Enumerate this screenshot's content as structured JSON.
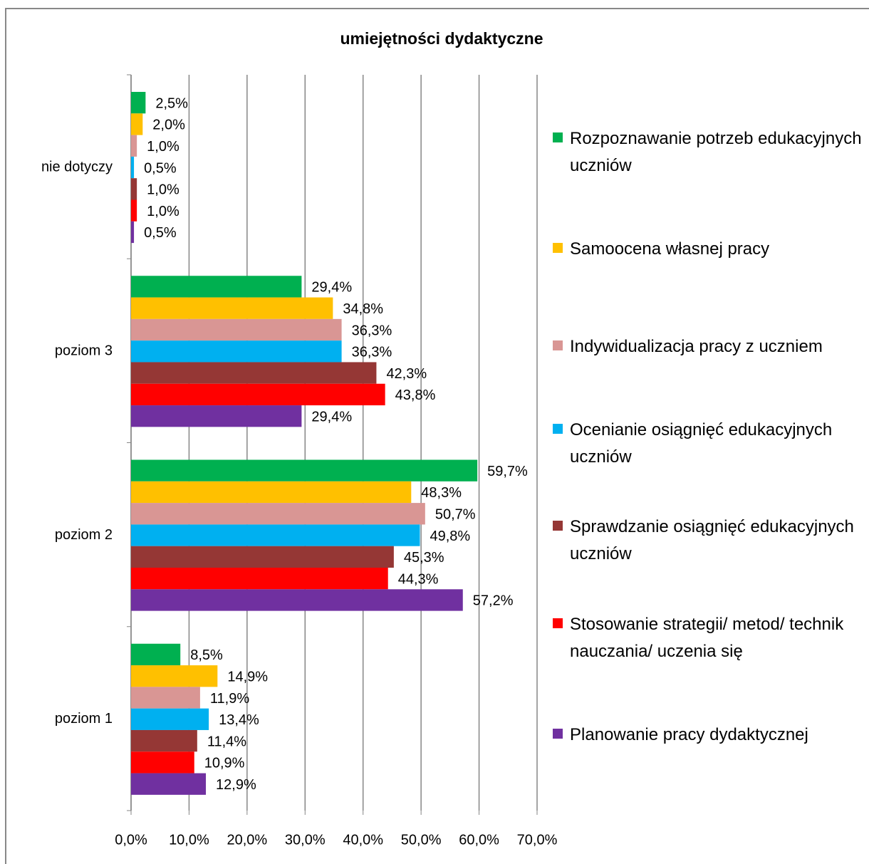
{
  "chart_data": {
    "type": "bar",
    "orientation": "horizontal",
    "title": "umiejętności dydaktyczne",
    "categories": [
      "nie dotyczy",
      "poziom 3",
      "poziom 2",
      "poziom 1"
    ],
    "series": [
      {
        "name": "Rozpoznawanie potrzeb edukacyjnych uczniów",
        "color": "#00b050",
        "values": [
          2.5,
          29.4,
          59.7,
          8.5
        ],
        "value_labels": [
          "2,5%",
          "29,4%",
          "59,7%",
          "8,5%"
        ]
      },
      {
        "name": "Samoocena własnej pracy",
        "color": "#ffc000",
        "values": [
          2.0,
          34.8,
          48.3,
          14.9
        ],
        "value_labels": [
          "2,0%",
          "34,8%",
          "48,3%",
          "14,9%"
        ]
      },
      {
        "name": "Indywidualizacja pracy z uczniem",
        "color": "#d99694",
        "values": [
          1.0,
          36.3,
          50.7,
          11.9
        ],
        "value_labels": [
          "1,0%",
          "36,3%",
          "50,7%",
          "11,9%"
        ]
      },
      {
        "name": "Ocenianie osiągnięć edukacyjnych uczniów",
        "color": "#00b0f0",
        "values": [
          0.5,
          36.3,
          49.8,
          13.4
        ],
        "value_labels": [
          "0,5%",
          "36,3%",
          "49,8%",
          "13,4%"
        ]
      },
      {
        "name": "Sprawdzanie osiągnięć edukacyjnych uczniów",
        "color": "#953735",
        "values": [
          1.0,
          42.3,
          45.3,
          11.4
        ],
        "value_labels": [
          "1,0%",
          "42,3%",
          "45,3%",
          "11,4%"
        ]
      },
      {
        "name": "Stosowanie strategii/ metod/ technik nauczania/ uczenia się",
        "color": "#ff0000",
        "values": [
          1.0,
          43.8,
          44.3,
          10.9
        ],
        "value_labels": [
          "1,0%",
          "43,8%",
          "44,3%",
          "10,9%"
        ]
      },
      {
        "name": "Planowanie pracy dydaktycznej",
        "color": "#7030a0",
        "values": [
          0.5,
          29.4,
          57.2,
          12.9
        ],
        "value_labels": [
          "0,5%",
          "29,4%",
          "57,2%",
          "12,9%"
        ]
      }
    ],
    "xlim": [
      0,
      70
    ],
    "xticks": [
      {
        "value": 0,
        "label": "0,0%"
      },
      {
        "value": 10,
        "label": "10,0%"
      },
      {
        "value": 20,
        "label": "20,0%"
      },
      {
        "value": 30,
        "label": "30,0%"
      },
      {
        "value": 40,
        "label": "40,0%"
      },
      {
        "value": 50,
        "label": "50,0%"
      },
      {
        "value": 60,
        "label": "60,0%"
      },
      {
        "value": 70,
        "label": "70,0%"
      }
    ],
    "grid": true,
    "legend": "right"
  }
}
